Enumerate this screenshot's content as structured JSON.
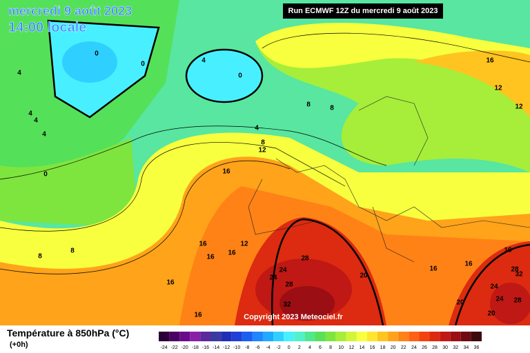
{
  "header": {
    "title": "mercredi 9 août 2023",
    "time": "14:00 locale"
  },
  "run_info": "Run ECMWF 12Z du mercredi 9 août 2023",
  "copyright": "Copyright 2023 Meteociel.fr",
  "legend": {
    "title": "Température à 850hPa (°C)",
    "subtitle": "(+0h)",
    "labels": [
      "-24",
      "-22",
      "-20",
      "-18",
      "-16",
      "-14",
      "-12",
      "-10",
      "-8",
      "-6",
      "-4",
      "-2",
      "0",
      "2",
      "4",
      "6",
      "8",
      "10",
      "12",
      "14",
      "16",
      "18",
      "20",
      "22",
      "24",
      "26",
      "28",
      "30",
      "32",
      "34",
      "36"
    ],
    "colors": [
      "#2b0036",
      "#4b0063",
      "#6a0a8a",
      "#8a1fa8",
      "#5a2a9a",
      "#3a3aa0",
      "#1f2fb5",
      "#1e40d8",
      "#1a5ff0",
      "#1f86ff",
      "#20aaff",
      "#2fd0ff",
      "#48f0ff",
      "#52f2c8",
      "#4fe890",
      "#58e05a",
      "#7ee53e",
      "#a6ee3a",
      "#d2f53a",
      "#f7ff3e",
      "#ffe52f",
      "#ffc41f",
      "#ffa31a",
      "#ff8216",
      "#ff6112",
      "#f2420e",
      "#dc2b10",
      "#c01814",
      "#9a0e14",
      "#6e0a12",
      "#3c0a0c"
    ]
  },
  "contour_labels": [
    "0",
    "0",
    "0",
    "4",
    "4",
    "8",
    "8",
    "4",
    "8",
    "12",
    "16",
    "16",
    "12",
    "12",
    "4",
    "4",
    "4",
    "0",
    "16",
    "12",
    "16",
    "16",
    "8",
    "8",
    "16",
    "16",
    "28",
    "24",
    "24",
    "28",
    "20",
    "32",
    "16",
    "16",
    "16",
    "28",
    "32",
    "24",
    "24",
    "20",
    "20",
    "28"
  ]
}
